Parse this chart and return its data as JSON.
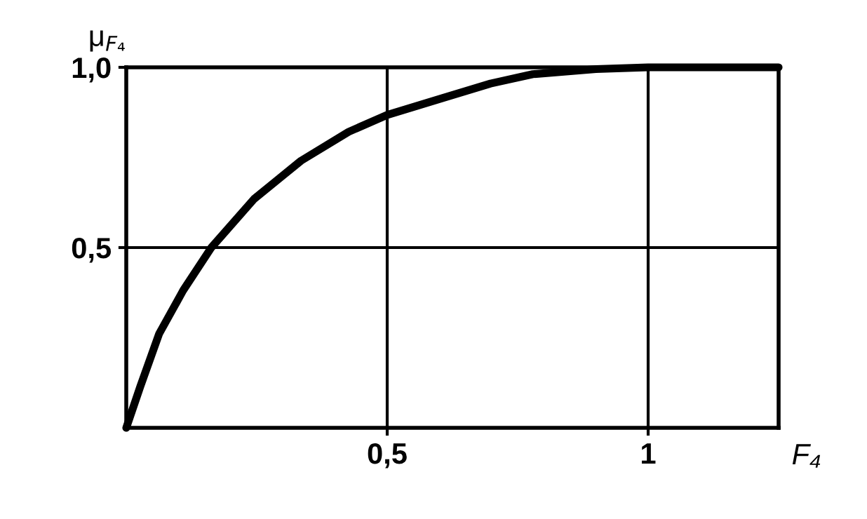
{
  "chart_data": {
    "type": "line",
    "xlabel": "F₄",
    "ylabel": "μ$_{F₄}$",
    "x": [
      0,
      0.027,
      0.063,
      0.109,
      0.163,
      0.245,
      0.335,
      0.426,
      0.5,
      0.607,
      0.698,
      0.779,
      0.9,
      1.0,
      1.25
    ],
    "series": [
      {
        "color": "#000000",
        "values": [
          0,
          0.115,
          0.261,
          0.381,
          0.5,
          0.635,
          0.741,
          0.821,
          0.868,
          0.915,
          0.955,
          0.981,
          0.995,
          1.0,
          1.0
        ]
      }
    ],
    "xlim": [
      0,
      1.25
    ],
    "ylim": [
      0,
      1
    ],
    "xticks": [
      {
        "value": 0.5,
        "label": "0,5"
      },
      {
        "value": 1,
        "label": "1"
      }
    ],
    "yticks": [
      {
        "value": 0.5,
        "label": "0,5"
      },
      {
        "value": 1,
        "label": "1,0"
      }
    ],
    "grid": true,
    "marker": "none",
    "line_style": "solid",
    "legend": false
  }
}
